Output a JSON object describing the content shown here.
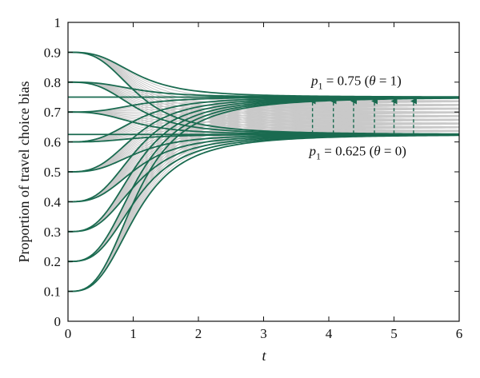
{
  "chart_data": {
    "type": "line",
    "title": "",
    "xlabel": "t",
    "ylabel": "Proportion of travel choice bias",
    "xlim": [
      0,
      6
    ],
    "ylim": [
      0,
      1
    ],
    "x_ticks": [
      "0",
      "1",
      "2",
      "3",
      "4",
      "5",
      "6"
    ],
    "y_ticks": [
      "0",
      "0.1",
      "0.2",
      "0.3",
      "0.4",
      "0.5",
      "0.6",
      "0.7",
      "0.8",
      "0.9",
      "1"
    ],
    "grid": false,
    "model": "logistic convergence from initial proportion p0 to equilibrium p1; p(t) = p1 + (p0 - p1) * (1 - t^3 / (t^3 + 1.2))",
    "initial_values": [
      0.1,
      0.2,
      0.3,
      0.4,
      0.5,
      0.6,
      0.7,
      0.8,
      0.9
    ],
    "equilibria_theta": [
      0.625,
      0.6375,
      0.65,
      0.6625,
      0.675,
      0.6875,
      0.7,
      0.7125,
      0.725,
      0.7375,
      0.75
    ],
    "series": [
      {
        "equilibrium": 0.75,
        "color": "#1a6b50"
      },
      {
        "equilibrium": 0.625,
        "color": "#1a6b50"
      }
    ],
    "intermediate_color": "#c9c9c9",
    "arrows_x": [
      3.75,
      4.07,
      4.38,
      4.7,
      5.0,
      5.3
    ],
    "arrow_color": "#1a6b50",
    "annotations": [
      {
        "var": "p",
        "sub": "1",
        "rest": " = 0.75 (",
        "theta": "θ",
        "tail": " = 1)",
        "x": 3.73,
        "y": 0.79
      },
      {
        "var": "p",
        "sub": "1",
        "rest": " = 0.625 (",
        "theta": "θ",
        "tail": " = 0)",
        "x": 3.7,
        "y": 0.555
      }
    ]
  }
}
